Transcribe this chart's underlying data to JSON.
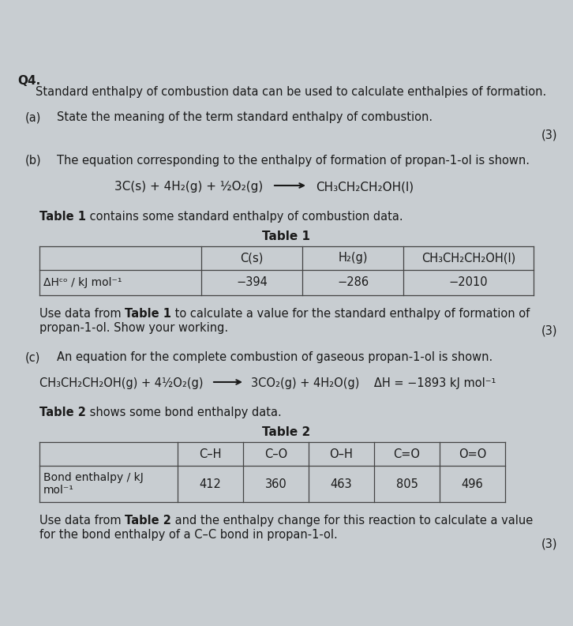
{
  "bg_color": "#c8cdd1",
  "text_color": "#1a1a1a",
  "q_number": "Q4.",
  "intro": "Standard enthalpy of combustion data can be used to calculate enthalpies of formation.",
  "a_label": "(a)",
  "a_text": "State the meaning of the term standard enthalpy of combustion.",
  "a_marks": "(3)",
  "b_label": "(b)",
  "b_text": "The equation corresponding to the enthalpy of formation of propan-1-ol is shown.",
  "b_equation_left": "3C(s) + 4H₂(g) + ½O₂(g)",
  "b_equation_right": "CH₃CH₂CH₂OH(l)",
  "b_table_intro_bold": "Table 1",
  "b_table_intro_rest": " contains some standard enthalpy of combustion data.",
  "table1_title": "Table 1",
  "table1_col1": "C(s)",
  "table1_col2": "H₂(g)",
  "table1_col3": "CH₃CH₂CH₂OH(l)",
  "table1_row1_label": "ΔHᶜᵒ / kJ mol⁻¹",
  "table1_row1_val1": "−394",
  "table1_row1_val2": "−286",
  "table1_row1_val3": "−2010",
  "b_instr_pre": "Use data from ",
  "b_instr_bold": "Table 1",
  "b_instr_post": " to calculate a value for the standard enthalpy of formation of",
  "b_instr_line2": "propan-1-ol. Show your working.",
  "b_marks": "(3)",
  "c_label": "(c)",
  "c_text": "An equation for the complete combustion of gaseous propan-1-ol is shown.",
  "c_equation": "CH₃CH₂CH₂OH(g) + 4½O₂(g)  ⟶  3CO₂(g) + 4H₂O(g)    ΔH = −1893 kJ mol⁻¹",
  "c_table_intro_bold": "Table 2",
  "c_table_intro_rest": " shows some bond enthalpy data.",
  "table2_title": "Table 2",
  "table2_col1": "C–H",
  "table2_col2": "C–O",
  "table2_col3": "O–H",
  "table2_col4": "C=O",
  "table2_col5": "O=O",
  "table2_row1_label": "Bond enthalpy / kJ\nmol⁻¹",
  "table2_row1_val1": "412",
  "table2_row1_val2": "360",
  "table2_row1_val3": "463",
  "table2_row1_val4": "805",
  "table2_row1_val5": "496",
  "c_instr_pre": "Use data from ",
  "c_instr_bold": "Table 2",
  "c_instr_post": " and the enthalpy change for this reaction to calculate a value",
  "c_instr_line2": "for the bond enthalpy of a C–C bond in propan-1-ol.",
  "c_marks": "(3)"
}
